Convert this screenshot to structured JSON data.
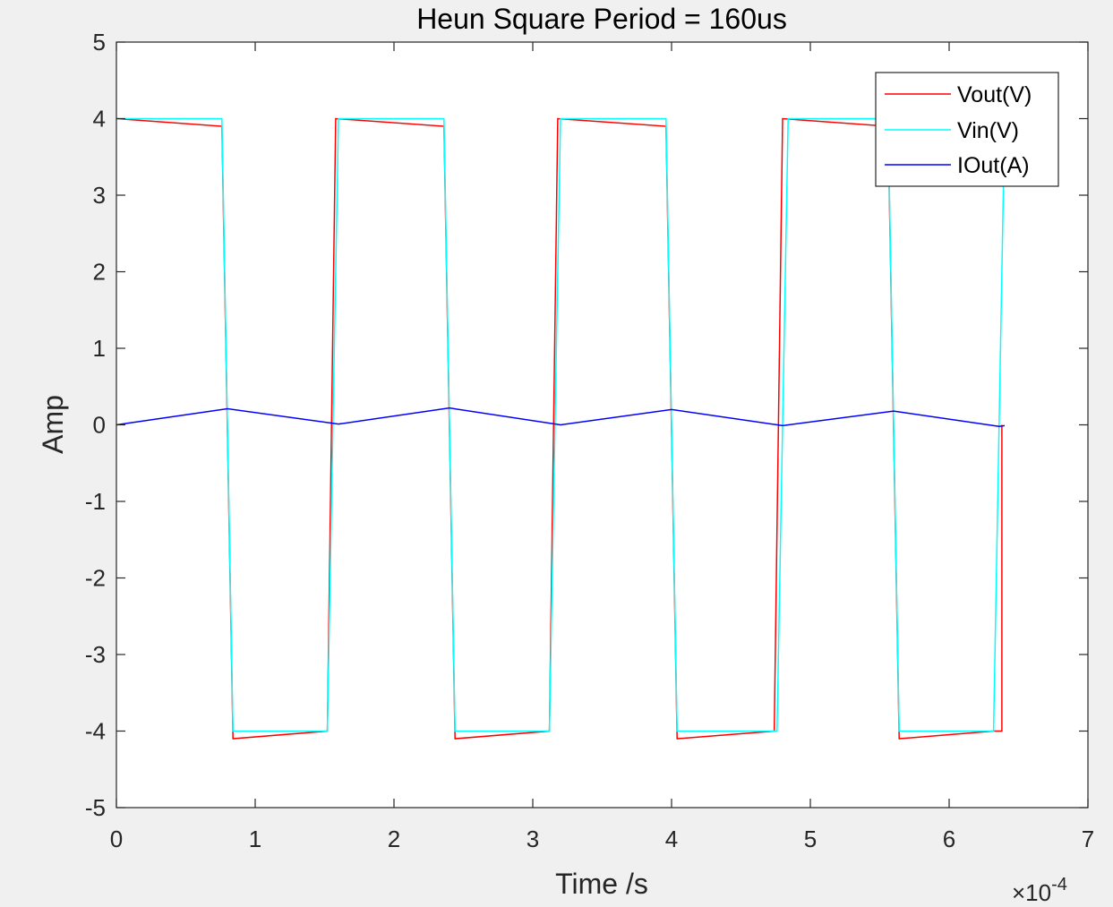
{
  "chart_data": {
    "type": "line",
    "title": "Heun Square Period = 160us",
    "xlabel": "Time /s",
    "ylabel": "Amp",
    "x_exponent_label": "×10",
    "x_exponent_power": "-4",
    "xlim": [
      0,
      7
    ],
    "ylim": [
      -5,
      5
    ],
    "xticks": [
      0,
      1,
      2,
      3,
      4,
      5,
      6,
      7
    ],
    "yticks": [
      -5,
      -4,
      -3,
      -2,
      -1,
      0,
      1,
      2,
      3,
      4,
      5
    ],
    "xtick_labels": [
      "0",
      "1",
      "2",
      "3",
      "4",
      "5",
      "6",
      "7"
    ],
    "ytick_labels": [
      "-5",
      "-4",
      "-3",
      "-2",
      "-1",
      "0",
      "1",
      "2",
      "3",
      "4",
      "5"
    ],
    "x_scale_note": "x values in units of 1e-4 s",
    "grid": false,
    "legend_position": "top-right",
    "series": [
      {
        "name": "Vout(V)",
        "color": "#ff0000",
        "x": [
          0,
          0.76,
          0.84,
          1.52,
          1.58,
          2.36,
          2.44,
          3.12,
          3.18,
          3.96,
          4.04,
          4.74,
          4.8,
          5.56,
          5.64,
          6.32,
          6.38,
          6.38
        ],
        "y": [
          4,
          3.9,
          -4.1,
          -4.0,
          4,
          3.9,
          -4.1,
          -4.0,
          4,
          3.9,
          -4.1,
          -4.0,
          4,
          3.9,
          -4.1,
          -4.0,
          -4.0,
          0
        ]
      },
      {
        "name": "Vin(V)",
        "color": "#00ffff",
        "x": [
          0,
          0.76,
          0.84,
          1.52,
          1.6,
          2.36,
          2.44,
          3.12,
          3.2,
          3.96,
          4.04,
          4.76,
          4.84,
          5.56,
          5.64,
          6.32,
          6.4
        ],
        "y": [
          4,
          4,
          -4,
          -4,
          4,
          4,
          -4,
          -4,
          4,
          4,
          -4,
          -4,
          4,
          4,
          -4,
          -4,
          4
        ]
      },
      {
        "name": "IOut(A)",
        "color": "#0000ff",
        "x": [
          0,
          0.8,
          1.6,
          2.4,
          3.2,
          4.0,
          4.8,
          5.6,
          6.36,
          6.4
        ],
        "y": [
          0,
          0.21,
          0.01,
          0.22,
          0.0,
          0.2,
          -0.01,
          0.18,
          -0.02,
          -0.01
        ]
      }
    ]
  }
}
